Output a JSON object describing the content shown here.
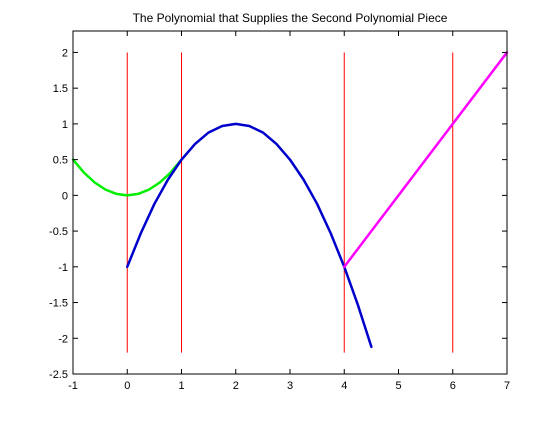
{
  "chart_data": {
    "type": "line",
    "title": "The Polynomial that Supplies the Second Polynomial Piece",
    "xlabel": "",
    "ylabel": "",
    "xlim": [
      -1,
      7
    ],
    "ylim": [
      -2.5,
      2.3
    ],
    "x_ticks": [
      -1,
      0,
      1,
      2,
      3,
      4,
      5,
      6,
      7
    ],
    "y_ticks": [
      -2.5,
      -2,
      -1.5,
      -1,
      -0.5,
      0,
      0.5,
      1,
      1.5,
      2
    ],
    "x_tick_labels": [
      "-1",
      "0",
      "1",
      "2",
      "3",
      "4",
      "5",
      "6",
      "7"
    ],
    "y_tick_labels": [
      "-2.5",
      "-2",
      "-1.5",
      "-1",
      "-0.5",
      "0",
      "0.5",
      "1",
      "1.5",
      "2"
    ],
    "grid": false,
    "series": [
      {
        "color": "#00ee00",
        "x": [
          -1,
          -0.8,
          -0.6,
          -0.4,
          -0.2,
          0,
          0.2,
          0.4,
          0.6,
          0.8,
          1
        ],
        "y": [
          0.5,
          0.32,
          0.18,
          0.08,
          0.02,
          0,
          0.02,
          0.08,
          0.18,
          0.32,
          0.5
        ]
      },
      {
        "color": "#0000cc",
        "x": [
          0,
          0.25,
          0.5,
          0.75,
          1,
          1.25,
          1.5,
          1.75,
          2,
          2.25,
          2.5,
          2.75,
          3,
          3.25,
          3.5,
          3.75,
          4,
          4.25,
          4.5
        ],
        "y": [
          -1,
          -0.53,
          -0.12,
          0.22,
          0.5,
          0.72,
          0.88,
          0.97,
          1,
          0.97,
          0.88,
          0.72,
          0.5,
          0.22,
          -0.12,
          -0.53,
          -1,
          -1.53,
          -2.12
        ]
      },
      {
        "color": "#ff00ff",
        "x": [
          4,
          7
        ],
        "y": [
          -1,
          2
        ]
      }
    ],
    "vlines": {
      "color": "#ff0000",
      "x": [
        0,
        1,
        4,
        6
      ],
      "y_range": [
        -2.2,
        2
      ]
    }
  }
}
